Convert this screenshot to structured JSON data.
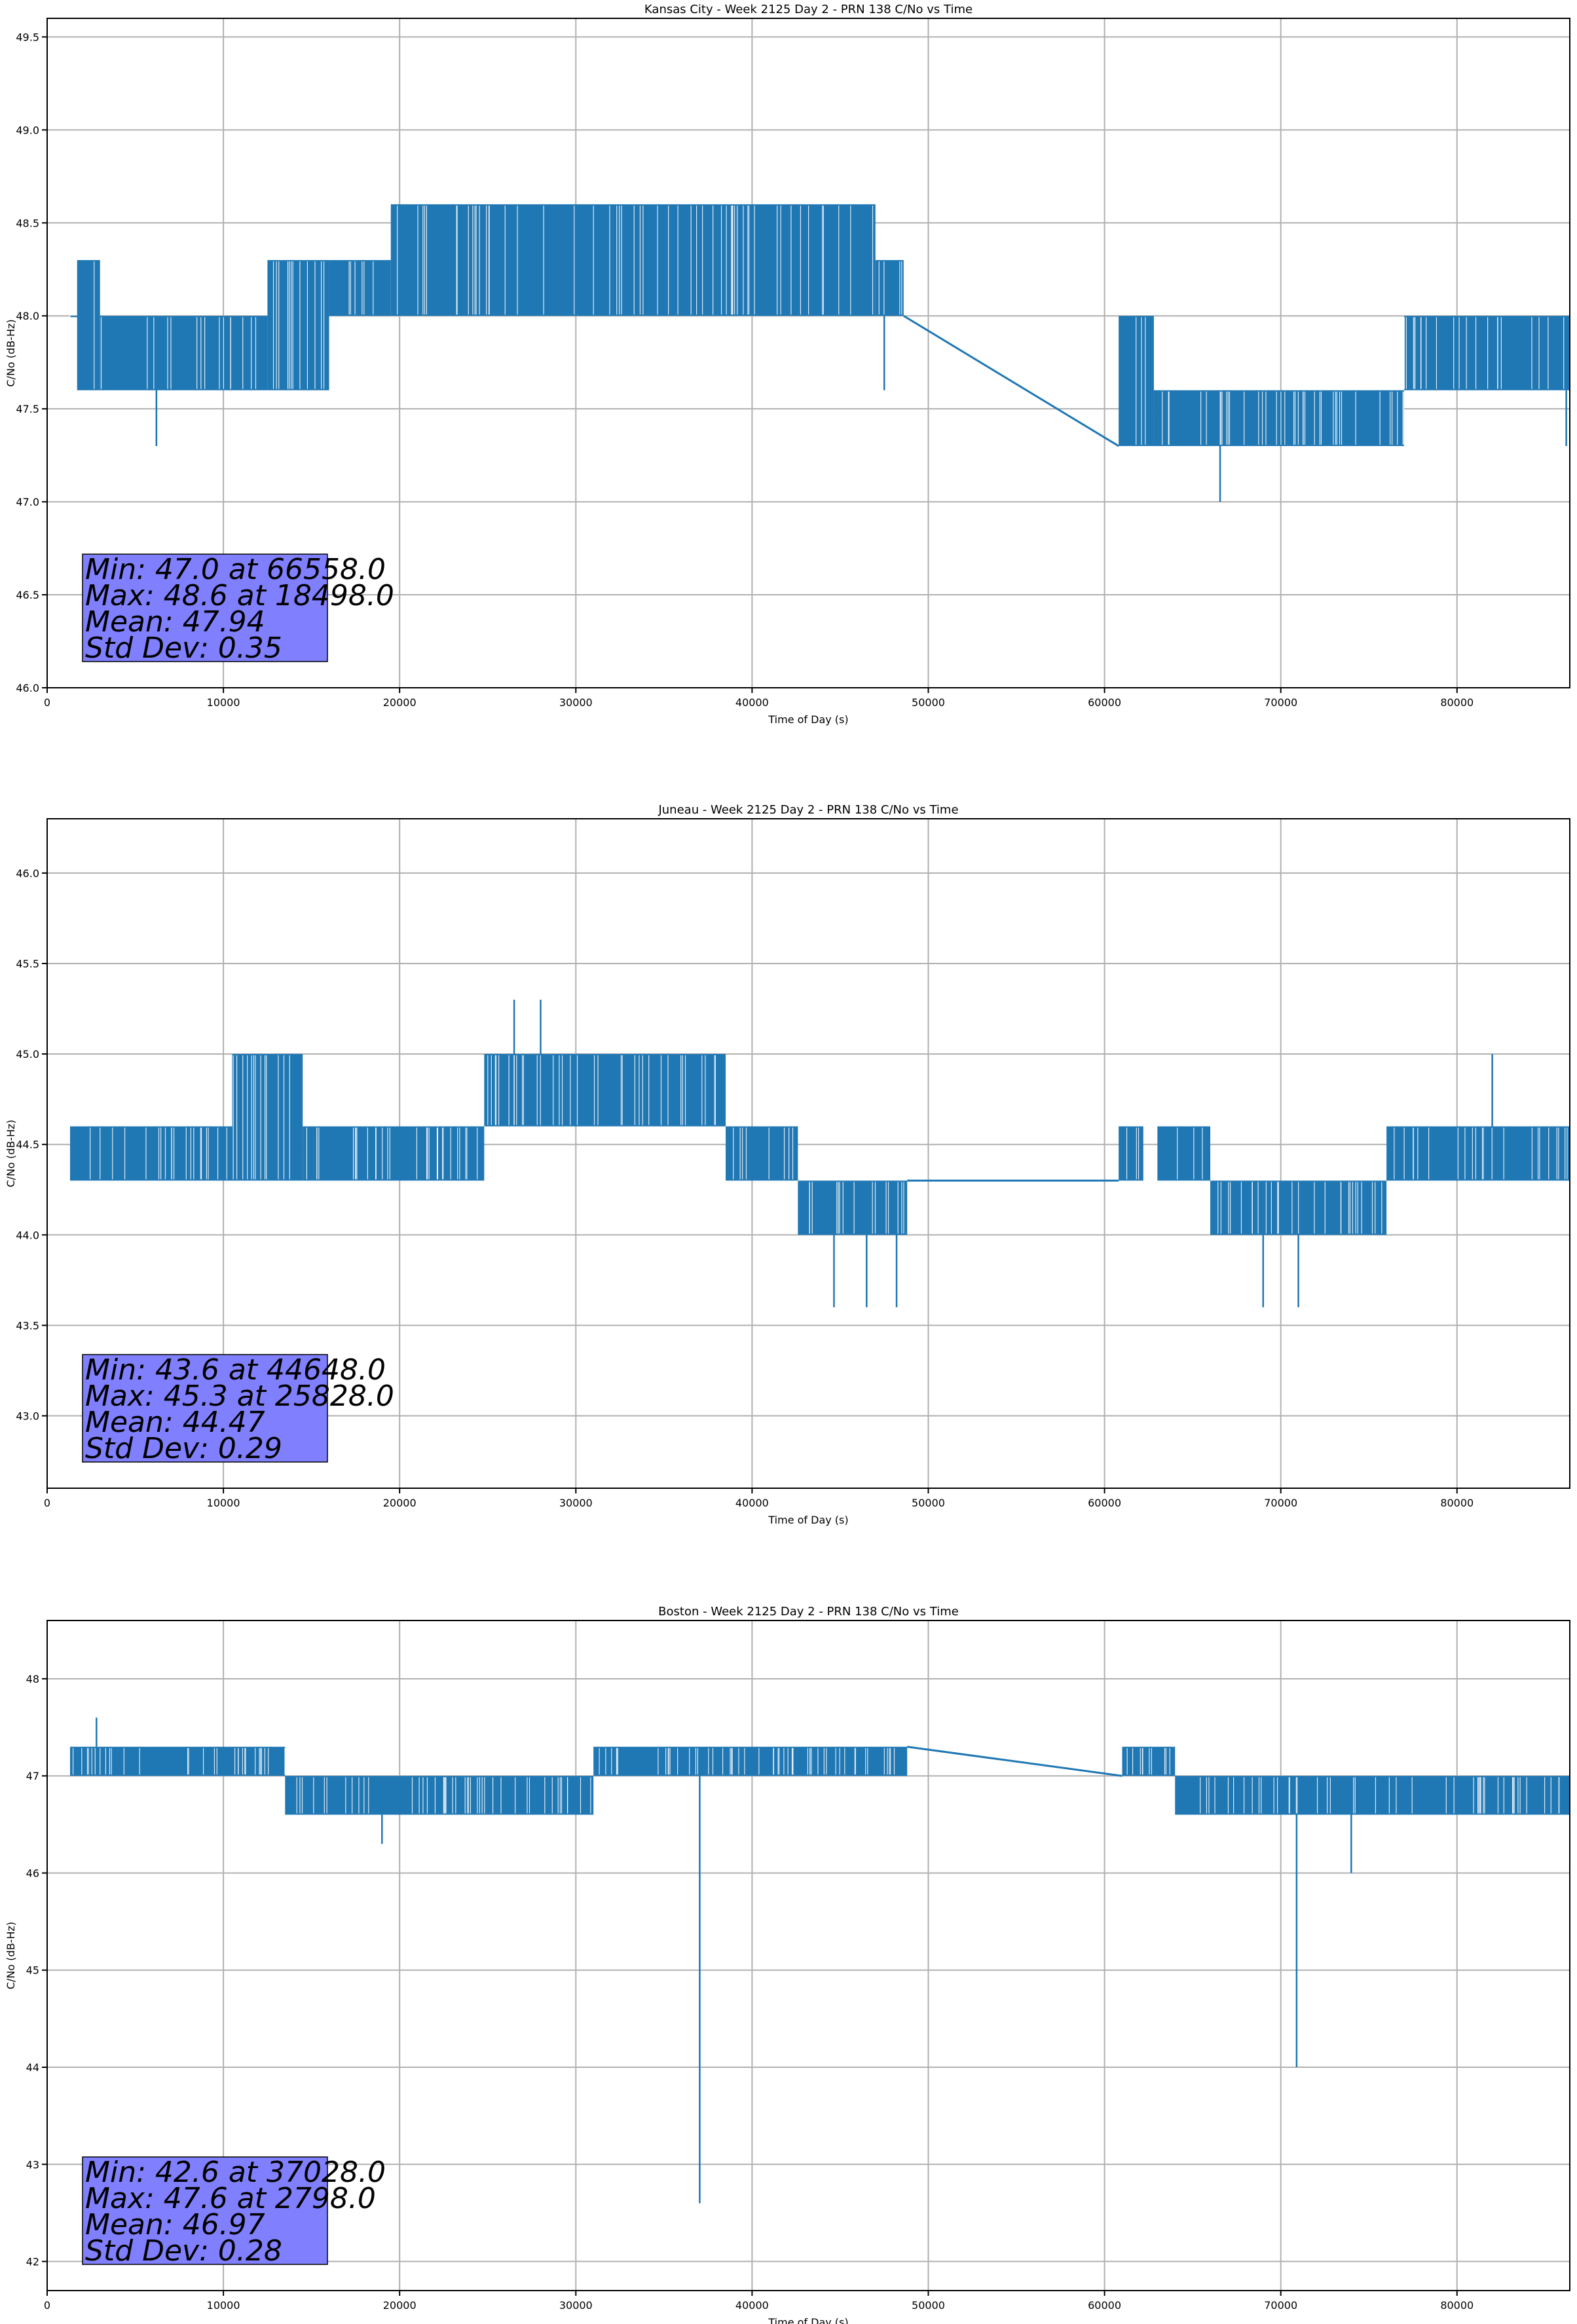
{
  "chart_data": [
    {
      "type": "line",
      "title": "Kansas City - Week 2125 Day 2 - PRN 138 C/No vs Time",
      "xlabel": "Time of Day (s)",
      "ylabel": "C/No (dB-Hz)",
      "xlim": [
        0,
        86400
      ],
      "ylim": [
        46.0,
        49.6
      ],
      "xticks": [
        0,
        10000,
        20000,
        30000,
        40000,
        50000,
        60000,
        70000,
        80000
      ],
      "yticks": [
        46.0,
        46.5,
        47.0,
        47.5,
        48.0,
        48.5,
        49.0,
        49.5
      ],
      "ytick_decimals": 1,
      "grid": true,
      "series_color": "#1f77b4",
      "stats_lines": [
        "Min: 47.0 at 66558.0",
        "Max: 48.6 at 18498.0",
        "Mean: 47.94",
        "Std Dev: 0.35"
      ],
      "segments": [
        {
          "x0": 1300,
          "x1": 1700,
          "low": 48.0,
          "high": 48.0
        },
        {
          "x0": 1700,
          "x1": 3000,
          "low": 47.6,
          "high": 48.3
        },
        {
          "x0": 3000,
          "x1": 12500,
          "low": 47.6,
          "high": 48.0
        },
        {
          "x0": 12500,
          "x1": 16000,
          "low": 47.6,
          "high": 48.3
        },
        {
          "x0": 16000,
          "x1": 19500,
          "low": 48.0,
          "high": 48.3
        },
        {
          "x0": 19500,
          "x1": 47000,
          "low": 48.0,
          "high": 48.6
        },
        {
          "x0": 47000,
          "x1": 48600,
          "low": 48.0,
          "high": 48.3
        },
        {
          "x0": 60800,
          "x1": 62800,
          "low": 47.3,
          "high": 48.0
        },
        {
          "x0": 62800,
          "x1": 77000,
          "low": 47.3,
          "high": 47.6
        },
        {
          "x0": 77000,
          "x1": 86400,
          "low": 47.6,
          "high": 48.0
        }
      ],
      "gap_lines": [
        {
          "x0": 48600,
          "y0": 48.0,
          "x1": 60800,
          "y1": 47.3
        }
      ],
      "spikes": [
        {
          "x": 6200,
          "y": 47.3
        },
        {
          "x": 66558,
          "y": 47.0
        },
        {
          "x": 47500,
          "y": 47.6
        },
        {
          "x": 86200,
          "y": 47.3
        }
      ]
    },
    {
      "type": "line",
      "title": "Juneau - Week 2125 Day 2 - PRN 138 C/No vs Time",
      "xlabel": "Time of Day (s)",
      "ylabel": "C/No (dB-Hz)",
      "xlim": [
        0,
        86400
      ],
      "ylim": [
        42.6,
        46.3
      ],
      "xticks": [
        0,
        10000,
        20000,
        30000,
        40000,
        50000,
        60000,
        70000,
        80000
      ],
      "yticks": [
        43.0,
        43.5,
        44.0,
        44.5,
        45.0,
        45.5,
        46.0
      ],
      "ytick_decimals": 1,
      "grid": true,
      "series_color": "#1f77b4",
      "stats_lines": [
        "Min: 43.6 at 44648.0",
        "Max: 45.3 at 25828.0",
        "Mean: 44.47",
        "Std Dev: 0.29"
      ],
      "segments": [
        {
          "x0": 1300,
          "x1": 10500,
          "low": 44.3,
          "high": 44.6
        },
        {
          "x0": 10500,
          "x1": 14500,
          "low": 44.3,
          "high": 45.0
        },
        {
          "x0": 14500,
          "x1": 24800,
          "low": 44.3,
          "high": 44.6
        },
        {
          "x0": 24800,
          "x1": 38500,
          "low": 44.6,
          "high": 45.0
        },
        {
          "x0": 38500,
          "x1": 42600,
          "low": 44.3,
          "high": 44.6
        },
        {
          "x0": 42600,
          "x1": 48800,
          "low": 44.0,
          "high": 44.3
        },
        {
          "x0": 60800,
          "x1": 62200,
          "low": 44.3,
          "high": 44.6
        },
        {
          "x0": 63000,
          "x1": 66000,
          "low": 44.3,
          "high": 44.6
        },
        {
          "x0": 66000,
          "x1": 76000,
          "low": 44.0,
          "high": 44.3
        },
        {
          "x0": 76000,
          "x1": 86400,
          "low": 44.3,
          "high": 44.6
        }
      ],
      "gap_lines": [
        {
          "x0": 48800,
          "y0": 44.3,
          "x1": 60800,
          "y1": 44.3
        }
      ],
      "spikes": [
        {
          "x": 26500,
          "y": 45.3
        },
        {
          "x": 28000,
          "y": 45.3
        },
        {
          "x": 44648,
          "y": 43.6
        },
        {
          "x": 46500,
          "y": 43.6
        },
        {
          "x": 48200,
          "y": 43.6
        },
        {
          "x": 69000,
          "y": 43.6
        },
        {
          "x": 71000,
          "y": 43.6
        },
        {
          "x": 82000,
          "y": 45.0
        }
      ]
    },
    {
      "type": "line",
      "title": "Boston - Week 2125 Day 2 - PRN 138 C/No vs Time",
      "xlabel": "Time of Day (s)",
      "ylabel": "C/No (dB-Hz)",
      "xlim": [
        0,
        86400
      ],
      "ylim": [
        41.7,
        48.6
      ],
      "xticks": [
        0,
        10000,
        20000,
        30000,
        40000,
        50000,
        60000,
        70000,
        80000
      ],
      "yticks": [
        42,
        43,
        44,
        45,
        46,
        47,
        48
      ],
      "ytick_decimals": 0,
      "grid": true,
      "series_color": "#1f77b4",
      "stats_lines": [
        "Min: 42.6 at 37028.0",
        "Max: 47.6 at 2798.0",
        "Mean: 46.97",
        "Std Dev: 0.28"
      ],
      "segments": [
        {
          "x0": 1300,
          "x1": 13500,
          "low": 47.0,
          "high": 47.3
        },
        {
          "x0": 13500,
          "x1": 31000,
          "low": 46.6,
          "high": 47.0
        },
        {
          "x0": 31000,
          "x1": 48800,
          "low": 47.0,
          "high": 47.3
        },
        {
          "x0": 61000,
          "x1": 64000,
          "low": 47.0,
          "high": 47.3
        },
        {
          "x0": 64000,
          "x1": 86400,
          "low": 46.6,
          "high": 47.0
        }
      ],
      "gap_lines": [
        {
          "x0": 48800,
          "y0": 47.3,
          "x1": 61000,
          "y1": 47.0
        }
      ],
      "spikes": [
        {
          "x": 2798,
          "y": 47.6
        },
        {
          "x": 37028,
          "y": 42.6
        },
        {
          "x": 70900,
          "y": 44.0
        },
        {
          "x": 19000,
          "y": 46.3
        },
        {
          "x": 74000,
          "y": 46.0
        }
      ]
    }
  ]
}
